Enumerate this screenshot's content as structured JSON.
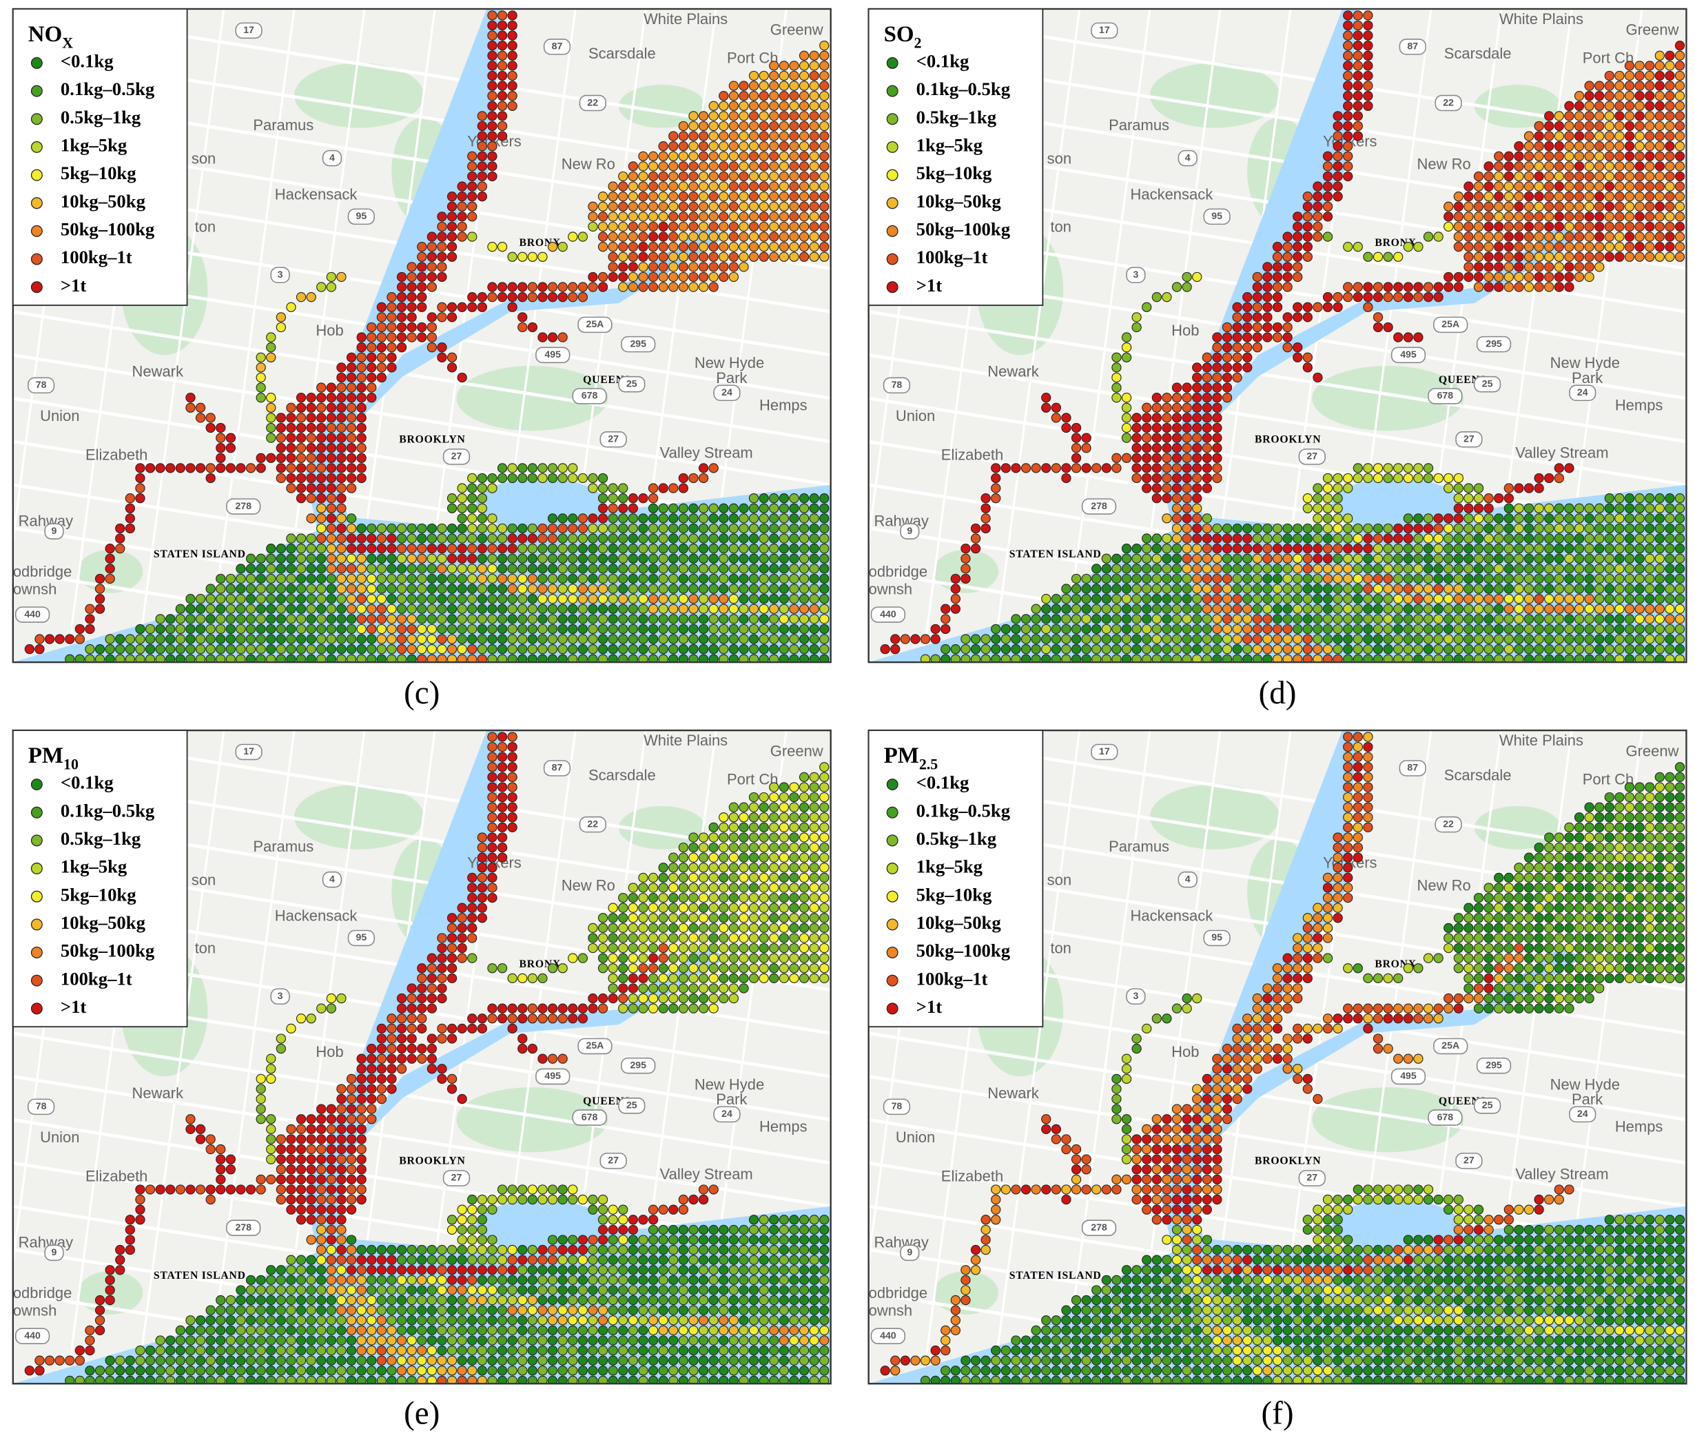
{
  "panels": [
    {
      "title": {
        "main": "NO",
        "sub": "X"
      },
      "caption": "(c)"
    },
    {
      "title": {
        "main": "SO",
        "sub": "2"
      },
      "caption": "(d)"
    },
    {
      "title": {
        "main": "PM",
        "sub": "10"
      },
      "caption": "(e)"
    },
    {
      "title": {
        "main": "PM",
        "sub": "2.5"
      },
      "caption": "(f)"
    }
  ],
  "legend": [
    {
      "label": "<0.1kg",
      "color": "#1f8a1c"
    },
    {
      "label": "0.1kg–0.5kg",
      "color": "#47a020"
    },
    {
      "label": "0.5kg–1kg",
      "color": "#7cb828"
    },
    {
      "label": "1kg–5kg",
      "color": "#bcd52a"
    },
    {
      "label": "5kg–10kg",
      "color": "#f2ee2a"
    },
    {
      "label": "10kg–50kg",
      "color": "#f2b82a"
    },
    {
      "label": "50kg–100kg",
      "color": "#ee8424"
    },
    {
      "label": "100kg–1t",
      "color": "#e2521e"
    },
    {
      "label": ">1t",
      "color": "#d01414"
    }
  ],
  "map_labels": [
    "White Plains",
    "Greenw",
    "Scarsdale",
    "Port Ch",
    "Paramus",
    "Yonkers",
    "New Ro",
    "Hackensack",
    "son",
    "ton",
    "Newark",
    "Union",
    "Elizabeth",
    "BROOKLYN",
    "QUEENS",
    "Valley Stream",
    "New Hyde",
    "Park",
    "Hemps",
    "Rahway",
    "STATEN ISLAND",
    "odbridge",
    "ownsh",
    "BRONX",
    "Hob"
  ],
  "road_shields": [
    "17",
    "87",
    "22",
    "4",
    "95",
    "3",
    "25A",
    "495",
    "295",
    "678",
    "25",
    "24",
    "27",
    "27",
    "78",
    "9",
    "278",
    "440"
  ]
}
